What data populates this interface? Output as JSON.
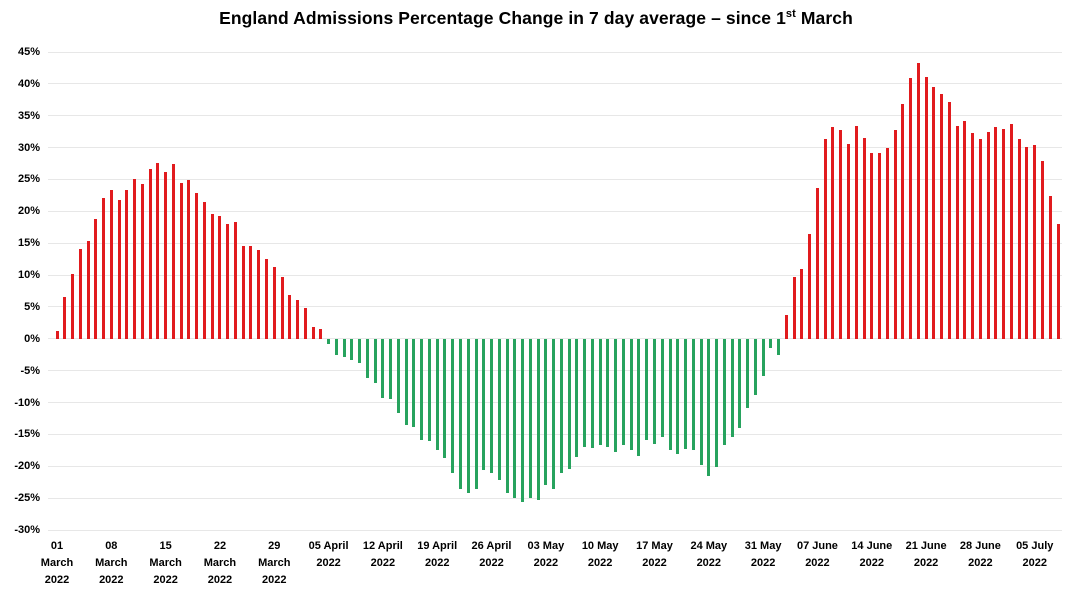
{
  "title": {
    "main": "England Admissions Percentage Change in 7 day average – since 1",
    "sup": "st",
    "tail": " March"
  },
  "chart_data": {
    "type": "bar",
    "title": "England Admissions Percentage Change in 7 day average – since 1st March",
    "xlabel": "",
    "ylabel": "",
    "x_frequency": "daily",
    "ylim": [
      -30,
      45
    ],
    "ytick_step": 5,
    "grid": "horizontal",
    "background": "#ffffff",
    "positive_color": "#e11b1e",
    "negative_color": "#27a35e",
    "gridline_color": "#e7e7e7",
    "ytick_labels": [
      "45%",
      "40%",
      "35%",
      "30%",
      "25%",
      "20%",
      "15%",
      "10%",
      "5%",
      "0%",
      "-5%",
      "-10%",
      "-15%",
      "-20%",
      "-25%",
      "-30%"
    ],
    "xtick_every_n_bars": 7,
    "xtick_labels": [
      [
        "01",
        "March",
        "2022"
      ],
      [
        "08",
        "March",
        "2022"
      ],
      [
        "15",
        "March",
        "2022"
      ],
      [
        "22",
        "March",
        "2022"
      ],
      [
        "29",
        "March",
        "2022"
      ],
      [
        "05 April",
        "2022"
      ],
      [
        "12 April",
        "2022"
      ],
      [
        "19 April",
        "2022"
      ],
      [
        "26 April",
        "2022"
      ],
      [
        "03 May",
        "2022"
      ],
      [
        "10 May",
        "2022"
      ],
      [
        "17 May",
        "2022"
      ],
      [
        "24 May",
        "2022"
      ],
      [
        "31 May",
        "2022"
      ],
      [
        "07 June",
        "2022"
      ],
      [
        "14 June",
        "2022"
      ],
      [
        "21 June",
        "2022"
      ],
      [
        "28 June",
        "2022"
      ],
      [
        "05 July",
        "2022"
      ]
    ],
    "dates": [
      "2022-03-01",
      "2022-03-02",
      "2022-03-03",
      "2022-03-04",
      "2022-03-05",
      "2022-03-06",
      "2022-03-07",
      "2022-03-08",
      "2022-03-09",
      "2022-03-10",
      "2022-03-11",
      "2022-03-12",
      "2022-03-13",
      "2022-03-14",
      "2022-03-15",
      "2022-03-16",
      "2022-03-17",
      "2022-03-18",
      "2022-03-19",
      "2022-03-20",
      "2022-03-21",
      "2022-03-22",
      "2022-03-23",
      "2022-03-24",
      "2022-03-25",
      "2022-03-26",
      "2022-03-27",
      "2022-03-28",
      "2022-03-29",
      "2022-03-30",
      "2022-03-31",
      "2022-04-01",
      "2022-04-02",
      "2022-04-03",
      "2022-04-04",
      "2022-04-05",
      "2022-04-06",
      "2022-04-07",
      "2022-04-08",
      "2022-04-09",
      "2022-04-10",
      "2022-04-11",
      "2022-04-12",
      "2022-04-13",
      "2022-04-14",
      "2022-04-15",
      "2022-04-16",
      "2022-04-17",
      "2022-04-18",
      "2022-04-19",
      "2022-04-20",
      "2022-04-21",
      "2022-04-22",
      "2022-04-23",
      "2022-04-24",
      "2022-04-25",
      "2022-04-26",
      "2022-04-27",
      "2022-04-28",
      "2022-04-29",
      "2022-04-30",
      "2022-05-01",
      "2022-05-02",
      "2022-05-03",
      "2022-05-04",
      "2022-05-05",
      "2022-05-06",
      "2022-05-07",
      "2022-05-08",
      "2022-05-09",
      "2022-05-10",
      "2022-05-11",
      "2022-05-12",
      "2022-05-13",
      "2022-05-14",
      "2022-05-15",
      "2022-05-16",
      "2022-05-17",
      "2022-05-18",
      "2022-05-19",
      "2022-05-20",
      "2022-05-21",
      "2022-05-22",
      "2022-05-23",
      "2022-05-24",
      "2022-05-25",
      "2022-05-26",
      "2022-05-27",
      "2022-05-28",
      "2022-05-29",
      "2022-05-30",
      "2022-05-31",
      "2022-06-01",
      "2022-06-02",
      "2022-06-03",
      "2022-06-04",
      "2022-06-05",
      "2022-06-06",
      "2022-06-07",
      "2022-06-08",
      "2022-06-09",
      "2022-06-10",
      "2022-06-11",
      "2022-06-12",
      "2022-06-13",
      "2022-06-14",
      "2022-06-15",
      "2022-06-16",
      "2022-06-17",
      "2022-06-18",
      "2022-06-19",
      "2022-06-20",
      "2022-06-21",
      "2022-06-22",
      "2022-06-23",
      "2022-06-24",
      "2022-06-25",
      "2022-06-26",
      "2022-06-27",
      "2022-06-28",
      "2022-06-29",
      "2022-06-30",
      "2022-07-01",
      "2022-07-02",
      "2022-07-03",
      "2022-07-04",
      "2022-07-05",
      "2022-07-06",
      "2022-07-07",
      "2022-07-08"
    ],
    "values": [
      1.3,
      6.6,
      10.1,
      14.1,
      15.4,
      18.8,
      22.1,
      23.4,
      21.8,
      23.4,
      25.0,
      24.3,
      26.7,
      27.6,
      26.1,
      27.4,
      24.5,
      24.9,
      22.8,
      21.4,
      19.6,
      19.2,
      18.0,
      18.4,
      14.5,
      14.6,
      13.9,
      12.5,
      11.3,
      9.7,
      6.9,
      6.1,
      4.9,
      1.9,
      1.5,
      -0.8,
      -2.6,
      -2.8,
      -3.3,
      -3.8,
      -6.2,
      -7.0,
      -9.3,
      -9.4,
      -11.7,
      -13.5,
      -13.8,
      -15.9,
      -16.0,
      -17.4,
      -18.7,
      -21.1,
      -23.5,
      -24.2,
      -23.5,
      -20.6,
      -21.0,
      -22.1,
      -24.2,
      -25.0,
      -25.6,
      -25.0,
      -25.3,
      -22.9,
      -23.5,
      -21.1,
      -20.5,
      -18.5,
      -17.0,
      -17.1,
      -16.7,
      -17.0,
      -17.7,
      -16.7,
      -17.5,
      -18.4,
      -15.9,
      -16.5,
      -15.4,
      -17.4,
      -18.0,
      -17.3,
      -17.4,
      -19.8,
      -21.6,
      -20.1,
      -16.7,
      -15.4,
      -14.0,
      -10.9,
      -8.8,
      -5.9,
      -1.5,
      -2.5,
      3.7,
      9.7,
      10.9,
      16.5,
      23.7,
      31.3,
      33.2,
      32.8,
      30.5,
      33.4,
      31.5,
      29.2,
      29.1,
      30.0,
      32.8,
      36.8,
      40.9,
      43.2,
      41.1,
      39.5,
      38.4,
      37.1,
      33.4,
      34.2,
      32.3,
      31.3,
      32.4,
      33.3,
      32.9,
      33.7,
      31.4,
      30.1,
      30.4,
      27.9,
      22.4,
      18.0
    ]
  }
}
